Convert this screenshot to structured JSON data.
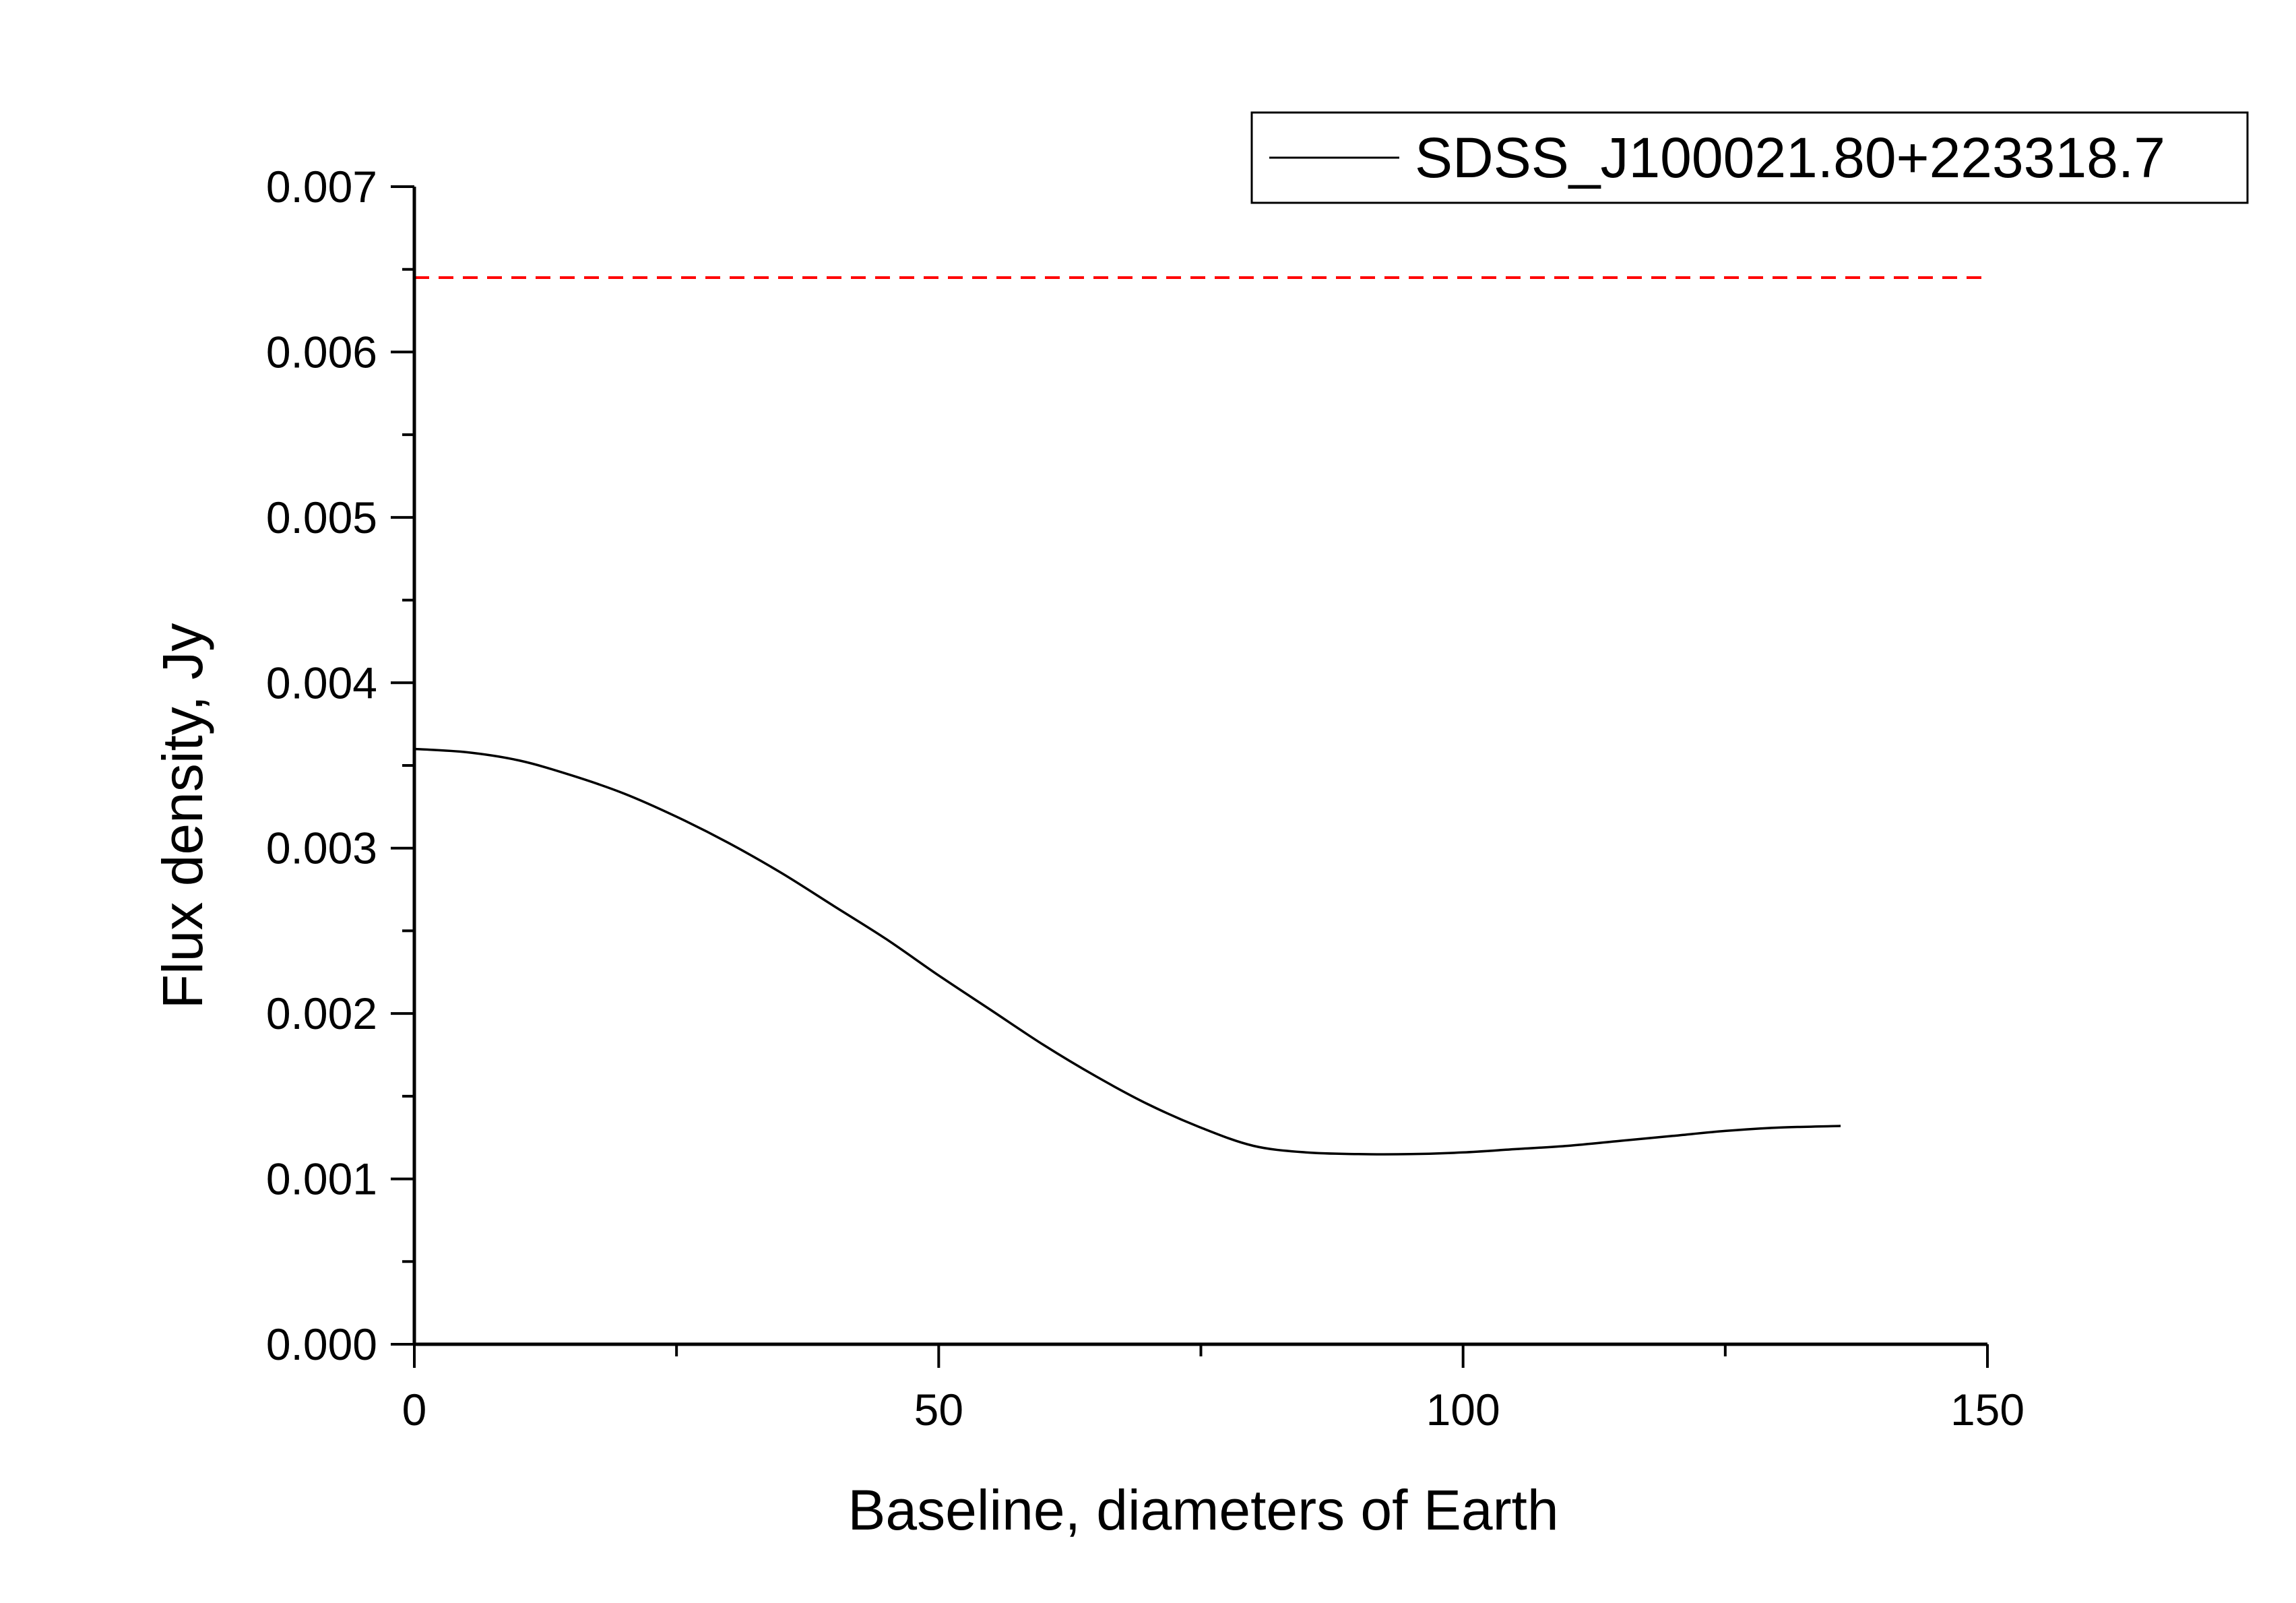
{
  "chart_data": {
    "type": "line",
    "title": "",
    "xlabel": "Baseline, diameters of Earth",
    "ylabel": "Flux density, Jy",
    "xlim": [
      0,
      150
    ],
    "ylim": [
      0,
      0.007
    ],
    "x_ticks": [
      0,
      50,
      100,
      150
    ],
    "x_tick_labels": [
      "0",
      "50",
      "100",
      "150"
    ],
    "y_ticks": [
      0,
      0.001,
      0.002,
      0.003,
      0.004,
      0.005,
      0.006,
      0.007
    ],
    "y_tick_labels": [
      "0.000",
      "0.001",
      "0.002",
      "0.003",
      "0.004",
      "0.005",
      "0.006",
      "0.007"
    ],
    "grid": false,
    "legend": "top-right",
    "series": [
      {
        "name": "SDSS_J100021.80+223318.7",
        "color": "#000000",
        "style": "solid",
        "x": [
          0,
          5,
          10,
          15,
          20,
          25,
          30,
          35,
          40,
          45,
          50,
          55,
          60,
          65,
          70,
          75,
          80,
          85,
          90,
          95,
          100,
          105,
          110,
          115,
          120,
          125,
          130,
          136
        ],
        "y": [
          0.0036,
          0.00358,
          0.00353,
          0.00344,
          0.00333,
          0.00319,
          0.00303,
          0.00285,
          0.00265,
          0.00245,
          0.00223,
          0.00202,
          0.00181,
          0.00162,
          0.00145,
          0.00131,
          0.0012,
          0.00116,
          0.00115,
          0.00115,
          0.00116,
          0.00118,
          0.0012,
          0.00123,
          0.00126,
          0.00129,
          0.00131,
          0.00132
        ]
      }
    ],
    "reference_lines": [
      {
        "type": "horizontal",
        "y": 0.00645,
        "x_range": [
          0,
          150
        ],
        "color": "#ff0000",
        "style": "dashed"
      }
    ]
  }
}
